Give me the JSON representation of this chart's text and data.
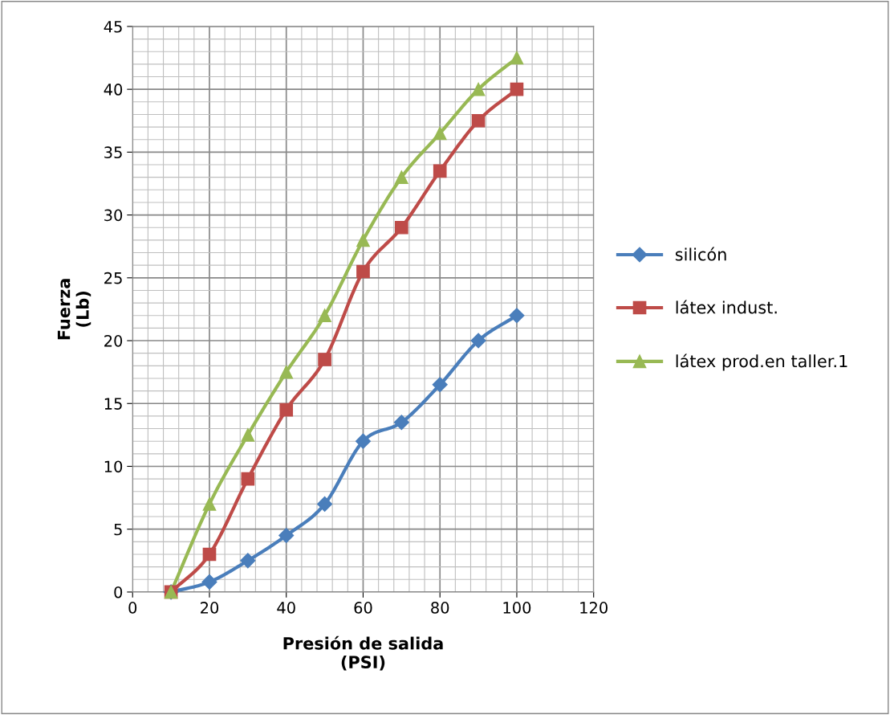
{
  "chart_data": {
    "type": "line",
    "xlabel": "Presión de salida\n(PSI)",
    "ylabel": "Fuerza\n(Lb)",
    "x": [
      10,
      20,
      30,
      40,
      50,
      60,
      70,
      80,
      90,
      100
    ],
    "series": [
      {
        "name": "silicón",
        "color": "#4a7ebb",
        "marker": "diamond",
        "values": [
          0,
          0.8,
          2.5,
          4.5,
          7,
          12,
          13.5,
          16.5,
          20,
          22
        ]
      },
      {
        "name": "látex indust.",
        "color": "#be4b48",
        "marker": "square",
        "values": [
          0,
          3,
          9,
          14.5,
          18.5,
          25.5,
          29,
          33.5,
          37.5,
          40
        ]
      },
      {
        "name": "látex prod.en taller.1",
        "color": "#98b954",
        "marker": "triangle",
        "values": [
          0,
          7,
          12.5,
          17.5,
          22,
          28,
          33,
          36.5,
          40,
          42.5
        ]
      }
    ],
    "xlim": [
      0,
      120
    ],
    "xticks": [
      0,
      20,
      40,
      60,
      80,
      100,
      120
    ],
    "ylim": [
      0,
      45
    ],
    "yticks": [
      0,
      5,
      10,
      15,
      20,
      25,
      30,
      35,
      40,
      45
    ],
    "grid": true,
    "legend": "right"
  }
}
